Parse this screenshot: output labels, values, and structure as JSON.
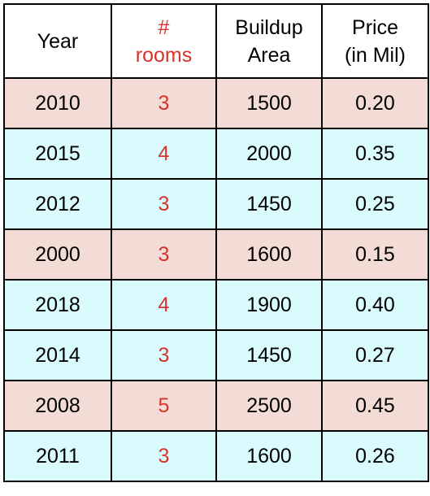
{
  "colors": {
    "accent_red": "#d8322a",
    "row_pink": "#f2dcd5",
    "row_cyan": "#dafbfd"
  },
  "headers": [
    {
      "lines": [
        "Year"
      ],
      "accent": false
    },
    {
      "lines": [
        "#",
        "rooms"
      ],
      "accent": true
    },
    {
      "lines": [
        "Buildup",
        "Area"
      ],
      "accent": false
    },
    {
      "lines": [
        "Price",
        "(in Mil)"
      ],
      "accent": false
    }
  ],
  "rows": [
    {
      "year": "2010",
      "rooms": "3",
      "area": "1500",
      "price": "0.20",
      "bg": "pink"
    },
    {
      "year": "2015",
      "rooms": "4",
      "area": "2000",
      "price": "0.35",
      "bg": "cyan"
    },
    {
      "year": "2012",
      "rooms": "3",
      "area": "1450",
      "price": "0.25",
      "bg": "cyan"
    },
    {
      "year": "2000",
      "rooms": "3",
      "area": "1600",
      "price": "0.15",
      "bg": "pink"
    },
    {
      "year": "2018",
      "rooms": "4",
      "area": "1900",
      "price": "0.40",
      "bg": "cyan"
    },
    {
      "year": "2014",
      "rooms": "3",
      "area": "1450",
      "price": "0.27",
      "bg": "cyan"
    },
    {
      "year": "2008",
      "rooms": "5",
      "area": "2500",
      "price": "0.45",
      "bg": "pink"
    },
    {
      "year": "2011",
      "rooms": "3",
      "area": "1600",
      "price": "0.26",
      "bg": "cyan"
    }
  ]
}
